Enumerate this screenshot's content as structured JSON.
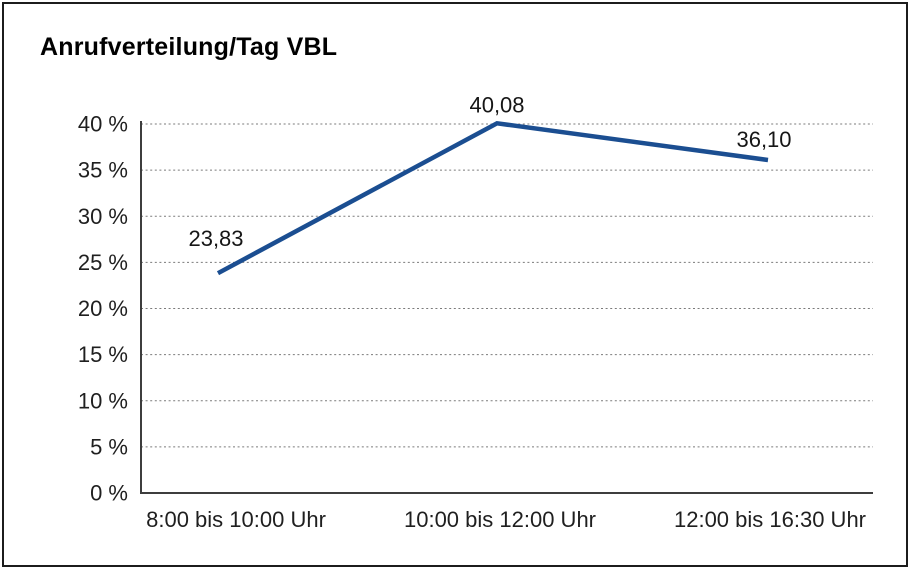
{
  "title": "Anrufverteilung/Tag VBL",
  "chart_data": {
    "type": "line",
    "title": "Anrufverteilung/Tag VBL",
    "categories": [
      "8:00 bis 10:00 Uhr",
      "10:00 bis 12:00 Uhr",
      "12:00 bis 16:30 Uhr"
    ],
    "values": [
      23.83,
      40.08,
      36.1
    ],
    "value_labels": [
      "23,83",
      "40,08",
      "36,10"
    ],
    "xlabel": "",
    "ylabel": "",
    "ylim": [
      0,
      40
    ],
    "ytick_step": 5,
    "ytick_labels": [
      "0 %",
      "5 %",
      "10 %",
      "15 %",
      "20 %",
      "25 %",
      "30 %",
      "35 %",
      "40 %"
    ],
    "ytick_suffix": " %",
    "grid": "horizontal-dotted",
    "legend_position": "none",
    "line_color": "#1b4e91",
    "decimal_separator": ","
  },
  "colors": {
    "line": "#1b4e91",
    "gridline": "#7b7b7b",
    "axis": "#3d3d3d",
    "text": "#1f1f1f",
    "background": "#ffffff",
    "frame_border": "#1c1c1c"
  }
}
